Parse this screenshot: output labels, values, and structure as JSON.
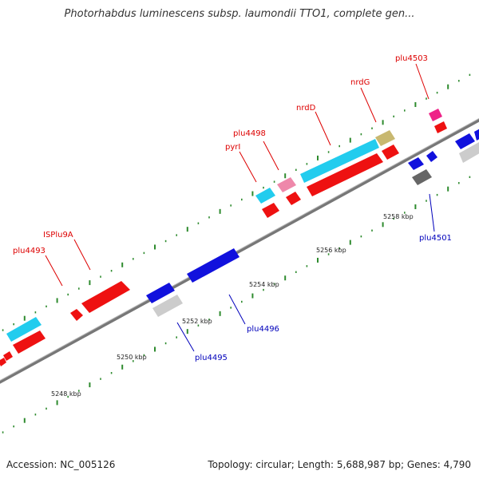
{
  "title": "Photorhabdus luminescens subsp. laumondii TTO1, complete gen...",
  "footer": {
    "accession": "Accession: NC_005126",
    "summary": "Topology: circular; Length: 5,688,987 bp; Genes: 4,790"
  },
  "colors": {
    "background": "#ffffff",
    "backbone": "#8a8a8a",
    "tick": "#2e8b2e",
    "forward_label": "#dd0000",
    "reverse_label": "#0000bb",
    "red_gene": "#ee1111",
    "cyan_gene": "#22ccee",
    "blue_gene": "#1111dd",
    "grey_gene": "#cccccc",
    "dark_grey_gene": "#666666",
    "pink_gene": "#ee88aa",
    "magenta_gene": "#ee2288",
    "olive_gene": "#c8b870"
  },
  "scale_labels": [
    "5248 kbp",
    "5250 kbp",
    "5252 kbp",
    "5254 kbp",
    "5256 kbp",
    "5258 kbp"
  ],
  "forward_labels": [
    "plu4493",
    "ISPlu9A",
    "pyrI",
    "plu4498",
    "nrdD",
    "nrdG",
    "plu4503"
  ],
  "reverse_labels": [
    "plu4495",
    "plu4496",
    "plu4501"
  ]
}
